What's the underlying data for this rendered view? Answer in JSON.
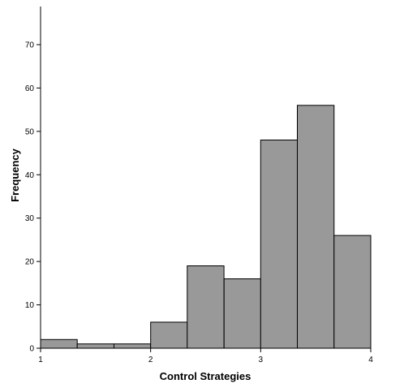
{
  "chart_data": {
    "type": "bar",
    "subtype": "histogram",
    "xlabel": "Control Strategies",
    "ylabel": "Frequency",
    "xlim": [
      1,
      4
    ],
    "ylim": [
      0,
      80
    ],
    "x_ticks": [
      1,
      2,
      3,
      4
    ],
    "y_ticks": [
      0,
      10,
      20,
      30,
      40,
      50,
      60,
      70
    ],
    "bins": [
      {
        "start": 1.0,
        "end": 1.333,
        "value": 2
      },
      {
        "start": 1.333,
        "end": 1.667,
        "value": 1
      },
      {
        "start": 1.667,
        "end": 2.0,
        "value": 1
      },
      {
        "start": 2.0,
        "end": 2.333,
        "value": 6
      },
      {
        "start": 2.333,
        "end": 2.667,
        "value": 19
      },
      {
        "start": 2.667,
        "end": 3.0,
        "value": 16
      },
      {
        "start": 3.0,
        "end": 3.333,
        "value": 48
      },
      {
        "start": 3.333,
        "end": 3.667,
        "value": 56
      },
      {
        "start": 3.667,
        "end": 4.0,
        "value": 26
      }
    ],
    "grid": false,
    "bar_color": "#999999"
  }
}
